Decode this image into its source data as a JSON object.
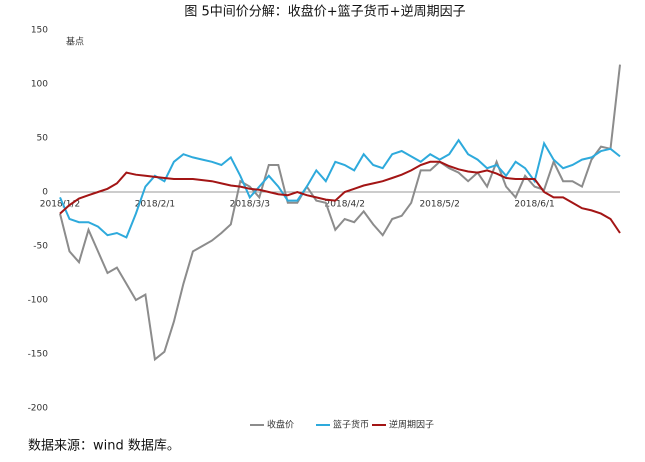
{
  "chart_data": {
    "type": "line",
    "title": "图 5中间价分解：收盘价+篮子货币+逆周期因子",
    "y_label": "基点",
    "source": "数据来源：wind 数据库。",
    "categories": [
      "2018/1/2",
      null,
      null,
      null,
      null,
      null,
      null,
      null,
      null,
      null,
      "2018/2/1",
      null,
      null,
      null,
      null,
      null,
      null,
      null,
      null,
      null,
      "2018/3/3",
      null,
      null,
      null,
      null,
      null,
      null,
      null,
      null,
      null,
      "2018/4/2",
      null,
      null,
      null,
      null,
      null,
      null,
      null,
      null,
      null,
      "2018/5/2",
      null,
      null,
      null,
      null,
      null,
      null,
      null,
      null,
      null,
      "2018/6/1",
      null,
      null,
      null,
      null,
      null,
      null,
      null,
      null,
      null
    ],
    "series": [
      {
        "name": "收盘价",
        "color": "#8c8c8c",
        "values": [
          -20,
          -55,
          -65,
          -35,
          -55,
          -75,
          -70,
          -85,
          -100,
          -95,
          -155,
          -148,
          -120,
          -85,
          -55,
          -50,
          -45,
          -38,
          -30,
          10,
          5,
          -5,
          25,
          25,
          -10,
          -10,
          5,
          -8,
          -10,
          -35,
          -25,
          -28,
          -18,
          -30,
          -40,
          -25,
          -22,
          -10,
          20,
          20,
          28,
          22,
          18,
          10,
          18,
          5,
          28,
          5,
          -5,
          15,
          5,
          2,
          28,
          10,
          10,
          5,
          30,
          42,
          40,
          118
        ]
      },
      {
        "name": "篮子货币",
        "color": "#2eaadc",
        "values": [
          -5,
          -25,
          -28,
          -28,
          -32,
          -40,
          -38,
          -42,
          -20,
          5,
          15,
          10,
          28,
          35,
          32,
          30,
          28,
          25,
          32,
          15,
          -5,
          5,
          15,
          5,
          -8,
          -8,
          5,
          20,
          10,
          28,
          25,
          20,
          35,
          25,
          22,
          35,
          38,
          33,
          28,
          35,
          30,
          35,
          48,
          35,
          30,
          22,
          25,
          15,
          28,
          22,
          10,
          45,
          30,
          22,
          25,
          30,
          32,
          38,
          40,
          33
        ]
      },
      {
        "name": "逆周期因子",
        "color": "#a31515",
        "values": [
          -20,
          -12,
          -6,
          -3,
          0,
          3,
          8,
          18,
          16,
          15,
          14,
          13,
          12,
          12,
          12,
          11,
          10,
          8,
          6,
          5,
          3,
          2,
          0,
          -2,
          -3,
          0,
          -3,
          -5,
          -7,
          -8,
          0,
          3,
          6,
          8,
          10,
          13,
          16,
          20,
          25,
          28,
          28,
          24,
          21,
          19,
          18,
          20,
          17,
          13,
          12,
          12,
          12,
          0,
          -5,
          -5,
          -10,
          -15,
          -17,
          -20,
          -25,
          -38
        ]
      }
    ],
    "ylim": [
      -200,
      150
    ],
    "yticks": [
      -200,
      -150,
      -100,
      -50,
      0,
      50,
      100,
      150
    ],
    "grid": false
  }
}
